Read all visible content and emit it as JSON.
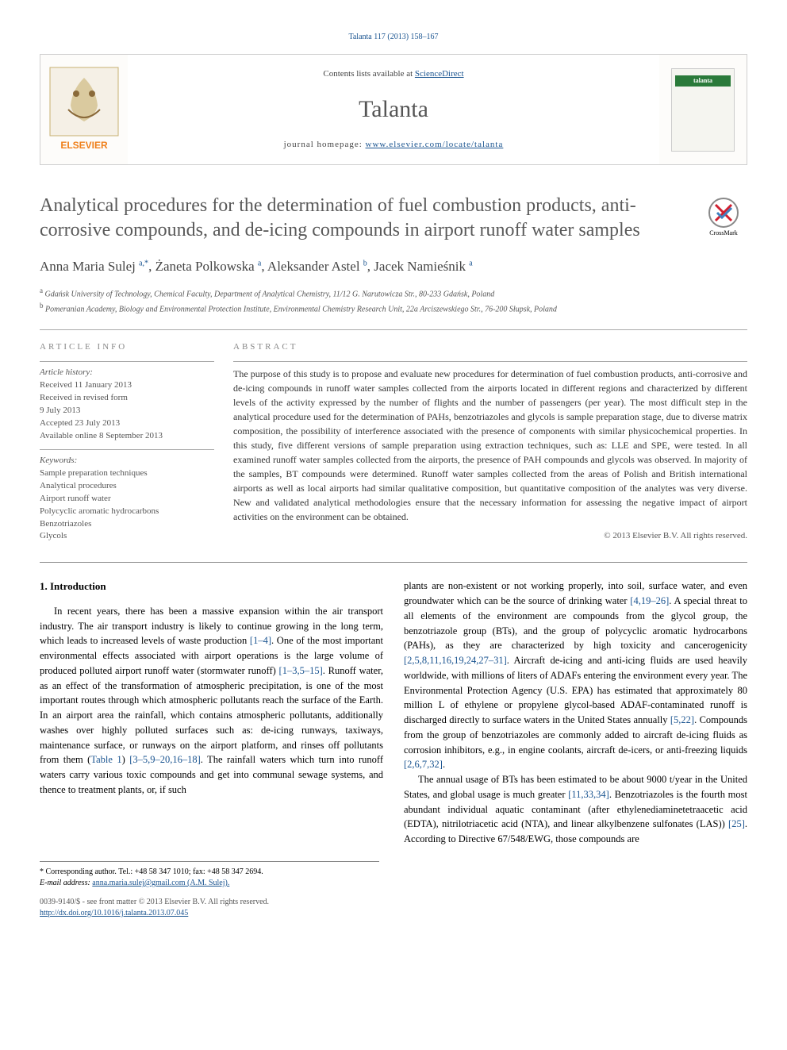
{
  "citation": "Talanta 117 (2013) 158–167",
  "header": {
    "contents_prefix": "Contents lists available at ",
    "contents_link": "ScienceDirect",
    "journal": "Talanta",
    "homepage_prefix": "journal homepage: ",
    "homepage_link": "www.elsevier.com/locate/talanta",
    "cover_label": "talanta",
    "elsevier_label": "ELSEVIER"
  },
  "title": "Analytical procedures for the determination of fuel combustion products, anti-corrosive compounds, and de-icing compounds in airport runoff water samples",
  "crossmark_label": "CrossMark",
  "authors_html": "Anna Maria Sulej <sup>a,*</sup>, Żaneta Polkowska <sup>a</sup>, Aleksander Astel <sup>b</sup>, Jacek Namieśnik <sup>a</sup>",
  "affiliations": [
    {
      "sup": "a",
      "text": "Gdańsk University of Technology, Chemical Faculty, Department of Analytical Chemistry, 11/12 G. Narutowicza Str., 80-233 Gdańsk, Poland"
    },
    {
      "sup": "b",
      "text": "Pomeranian Academy, Biology and Environmental Protection Institute, Environmental Chemistry Research Unit, 22a Arciszewskiego Str., 76-200 Słupsk, Poland"
    }
  ],
  "info_label": "ARTICLE INFO",
  "abstract_label": "ABSTRACT",
  "history_title": "Article history:",
  "history": [
    "Received 11 January 2013",
    "Received in revised form",
    "9 July 2013",
    "Accepted 23 July 2013",
    "Available online 8 September 2013"
  ],
  "keywords_title": "Keywords:",
  "keywords": [
    "Sample preparation techniques",
    "Analytical procedures",
    "Airport runoff water",
    "Polycyclic aromatic hydrocarbons",
    "Benzotriazoles",
    "Glycols"
  ],
  "abstract": "The purpose of this study is to propose and evaluate new procedures for determination of fuel combustion products, anti-corrosive and de-icing compounds in runoff water samples collected from the airports located in different regions and characterized by different levels of the activity expressed by the number of flights and the number of passengers (per year). The most difficult step in the analytical procedure used for the determination of PAHs, benzotriazoles and glycols is sample preparation stage, due to diverse matrix composition, the possibility of interference associated with the presence of components with similar physicochemical properties. In this study, five different versions of sample preparation using extraction techniques, such as: LLE and SPE, were tested. In all examined runoff water samples collected from the airports, the presence of PAH compounds and glycols was observed. In majority of the samples, BT compounds were determined. Runoff water samples collected from the areas of Polish and British international airports as well as local airports had similar qualitative composition, but quantitative composition of the analytes was very diverse. New and validated analytical methodologies ensure that the necessary information for assessing the negative impact of airport activities on the environment can be obtained.",
  "copyright": "© 2013 Elsevier B.V. All rights reserved.",
  "section1_heading": "1.  Introduction",
  "col1_para": "In recent years, there has been a massive expansion within the air transport industry. The air transport industry is likely to continue growing in the long term, which leads to increased levels of waste production [1–4]. One of the most important environmental effects associated with airport operations is the large volume of produced polluted airport runoff water (stormwater runoff) [1–3,5–15]. Runoff water, as an effect of the transformation of atmospheric precipitation, is one of the most important routes through which atmospheric pollutants reach the surface of the Earth. In an airport area the rainfall, which contains atmospheric pollutants, additionally washes over highly polluted surfaces such as: de-icing runways, taxiways, maintenance surface, or runways on the airport platform, and rinses off pollutants from them (Table 1) [3–5,9–20,16–18]. The rainfall waters which turn into runoff waters carry various toxic compounds and get into communal sewage systems, and thence to treatment plants, or, if such",
  "col2_para1": "plants are non-existent or not working properly, into soil, surface water, and even groundwater which can be the source of drinking water [4,19–26]. A special threat to all elements of the environment are compounds from the glycol group, the benzotriazole group (BTs), and the group of polycyclic aromatic hydrocarbons (PAHs), as they are characterized by high toxicity and cancerogenicity [2,5,8,11,16,19,24,27–31]. Aircraft de-icing and anti-icing fluids are used heavily worldwide, with millions of liters of ADAFs entering the environment every year. The Environmental Protection Agency (U.S. EPA) has estimated that approximately 80 million L of ethylene or propylene glycol-based ADAF-contaminated runoff is discharged directly to surface waters in the United States annually [5,22]. Compounds from the group of benzotriazoles are commonly added to aircraft de-icing fluids as corrosion inhibitors, e.g., in engine coolants, aircraft de-icers, or anti-freezing liquids [2,6,7,32].",
  "col2_para2": "The annual usage of BTs has been estimated to be about 9000 t/year in the United States, and global usage is much greater [11,33,34]. Benzotriazoles is the fourth most abundant individual aquatic contaminant (after ethylenediaminetetraacetic acid (EDTA), nitrilotriacetic acid (NTA), and linear alkylbenzene sulfonates (LAS)) [25]. According to Directive 67/548/EWG, those compounds are",
  "footnote": {
    "corresp": "* Corresponding author. Tel.: +48 58 347 1010; fax: +48 58 347 2694.",
    "email_label": "E-mail address: ",
    "email": "anna.maria.sulej@gmail.com (A.M. Sulej)."
  },
  "bottom": {
    "issn": "0039-9140/$ - see front matter © 2013 Elsevier B.V. All rights reserved.",
    "doi": "http://dx.doi.org/10.1016/j.talanta.2013.07.045"
  },
  "colors": {
    "link": "#1a5490",
    "elsevier_orange": "#ef7f1a",
    "talanta_green": "#2a7a3a"
  }
}
